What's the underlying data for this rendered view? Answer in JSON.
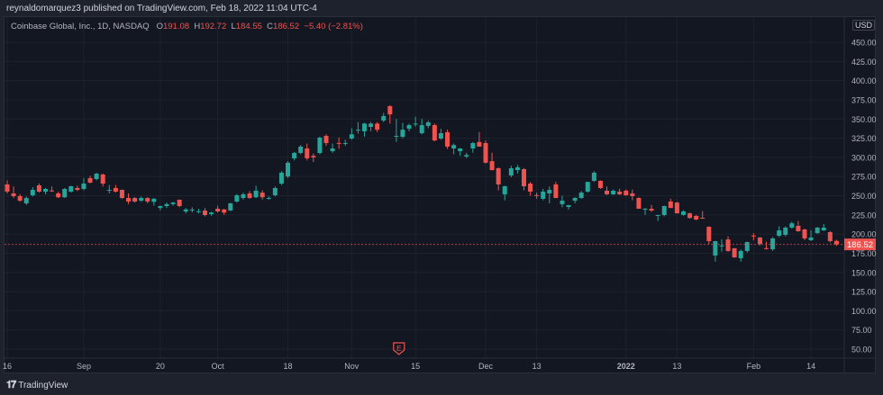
{
  "header": {
    "publish_line": "reynaldomarquez3 published on TradingView.com, Feb 18, 2022 11:04 UTC-4"
  },
  "legend": {
    "symbol": "Coinbase Global, Inc., 1D, NASDAQ",
    "o_label": "O",
    "o": "191.08",
    "h_label": "H",
    "h": "192.72",
    "l_label": "L",
    "l": "184.55",
    "c_label": "C",
    "c": "186.52",
    "change": "−5.40 (−2.81%)"
  },
  "currency": "USD",
  "footer": {
    "brand": "TradingView",
    "logo": "17"
  },
  "colors": {
    "up": "#26a69a",
    "down": "#ef5350",
    "background": "#131722",
    "grid": "#1e222d"
  },
  "earnings_marker": {
    "label": "E",
    "index": 60
  },
  "chart_data": {
    "type": "candlestick",
    "ylim": [
      37.5,
      462.5
    ],
    "y_ticks": [
      "450.00",
      "425.00",
      "400.00",
      "375.00",
      "350.00",
      "325.00",
      "300.00",
      "275.00",
      "250.00",
      "225.00",
      "200.00",
      "175.00",
      "150.00",
      "125.00",
      "100.00",
      "75.00",
      "50.00"
    ],
    "x_ticks": [
      {
        "label": "16",
        "index": 0
      },
      {
        "label": "Sep",
        "index": 12
      },
      {
        "label": "20",
        "index": 24
      },
      {
        "label": "Oct",
        "index": 33
      },
      {
        "label": "18",
        "index": 44
      },
      {
        "label": "Nov",
        "index": 54
      },
      {
        "label": "15",
        "index": 64
      },
      {
        "label": "Dec",
        "index": 75
      },
      {
        "label": "13",
        "index": 83
      },
      {
        "label": "2022",
        "index": 97
      },
      {
        "label": "13",
        "index": 105
      },
      {
        "label": "Feb",
        "index": 117
      },
      {
        "label": "14",
        "index": 126
      }
    ],
    "last_price": "186.52",
    "grid": true,
    "ohlc": [
      [
        264.7,
        270,
        253,
        255.3
      ],
      [
        253,
        262,
        247,
        249.4
      ],
      [
        249.4,
        252,
        242,
        243.5
      ],
      [
        240,
        249,
        238,
        247
      ],
      [
        250.6,
        261,
        249,
        257.6
      ],
      [
        263.5,
        266,
        254,
        255.3
      ],
      [
        255.3,
        260,
        252,
        258.8
      ],
      [
        256.8,
        262,
        255,
        256.5
      ],
      [
        253,
        255,
        247,
        248
      ],
      [
        248,
        260,
        247,
        258.8
      ],
      [
        255.3,
        263,
        254,
        262.3
      ],
      [
        260,
        263,
        256,
        257.6
      ],
      [
        258.8,
        273,
        257,
        265.8
      ],
      [
        272.9,
        276,
        266,
        267
      ],
      [
        271.7,
        280,
        270,
        278.7
      ],
      [
        277.6,
        279,
        262,
        265.8
      ],
      [
        256.5,
        264,
        253,
        257.6
      ],
      [
        260,
        264,
        254,
        255.3
      ],
      [
        257.6,
        258,
        246,
        247
      ],
      [
        247,
        253,
        239,
        242.4
      ],
      [
        247,
        248,
        241,
        242.4
      ],
      [
        243.5,
        249,
        242,
        247
      ],
      [
        247,
        248,
        240,
        242.4
      ],
      [
        242,
        247,
        237,
        246
      ],
      [
        234,
        237,
        231,
        236.5
      ],
      [
        236.5,
        241,
        234,
        239
      ],
      [
        239,
        242,
        237,
        241
      ],
      [
        244.7,
        245,
        235,
        236.5
      ],
      [
        229.5,
        234,
        227,
        232
      ],
      [
        231.5,
        235,
        228,
        232
      ],
      [
        229.5,
        233,
        227,
        229.8
      ],
      [
        230.6,
        234,
        223,
        224.8
      ],
      [
        226,
        229,
        224,
        228
      ],
      [
        233,
        237,
        228,
        229.5
      ],
      [
        232,
        233,
        225,
        228
      ],
      [
        230.6,
        241,
        230,
        240
      ],
      [
        242.4,
        252,
        241,
        250.6
      ],
      [
        247,
        254,
        245,
        251.8
      ],
      [
        253,
        256,
        246,
        247
      ],
      [
        248,
        263,
        247,
        256.5
      ],
      [
        254,
        257,
        245,
        248
      ],
      [
        246.6,
        249,
        245,
        247
      ],
      [
        250.6,
        262,
        249,
        260
      ],
      [
        265.8,
        282,
        264,
        280
      ],
      [
        275,
        295,
        273,
        293
      ],
      [
        298.7,
        307,
        296,
        305.7
      ],
      [
        305.7,
        316,
        304,
        314
      ],
      [
        311.6,
        318,
        296,
        298.7
      ],
      [
        302,
        305,
        294,
        300
      ],
      [
        305.7,
        327,
        304,
        325.7
      ],
      [
        328,
        330,
        315,
        318.6
      ],
      [
        308,
        318,
        306,
        311.6
      ],
      [
        318.8,
        326,
        311,
        318.6
      ],
      [
        318.4,
        323,
        315,
        318.6
      ],
      [
        324.5,
        338,
        323,
        330
      ],
      [
        335.8,
        346,
        331,
        336
      ],
      [
        334,
        345,
        327,
        344
      ],
      [
        339.7,
        346,
        334,
        344
      ],
      [
        344,
        346,
        333,
        336
      ],
      [
        348,
        358,
        346,
        353.8
      ],
      [
        366.7,
        368,
        344,
        356
      ],
      [
        327.6,
        350,
        320,
        328
      ],
      [
        326.8,
        345,
        325,
        336
      ],
      [
        337.4,
        344,
        334,
        342
      ],
      [
        343.8,
        353,
        340,
        344
      ],
      [
        331.5,
        350,
        330,
        342
      ],
      [
        341,
        348,
        338,
        345.6
      ],
      [
        342,
        344,
        321,
        322
      ],
      [
        324.5,
        337,
        323,
        331.5
      ],
      [
        332.7,
        336,
        311,
        314
      ],
      [
        311.6,
        318,
        304,
        316
      ],
      [
        308,
        312,
        302,
        311.6
      ],
      [
        301,
        306,
        299,
        303
      ],
      [
        311.6,
        320,
        306,
        318.6
      ],
      [
        320,
        333,
        314,
        314
      ],
      [
        318.6,
        322,
        292,
        293
      ],
      [
        295,
        306,
        283,
        283.4
      ],
      [
        285.8,
        287,
        257,
        264.7
      ],
      [
        251.8,
        263,
        244,
        262.3
      ],
      [
        276.4,
        289,
        274,
        285.8
      ],
      [
        283.4,
        290,
        279,
        287
      ],
      [
        284.6,
        286,
        257,
        262.3
      ],
      [
        265.8,
        268,
        250,
        255.3
      ],
      [
        250.8,
        254,
        246,
        250.6
      ],
      [
        246,
        259,
        244,
        255.3
      ],
      [
        253,
        262,
        240,
        257.6
      ],
      [
        264.7,
        268,
        247,
        247
      ],
      [
        239,
        250,
        235,
        243.5
      ],
      [
        235.3,
        238,
        232,
        237.7
      ],
      [
        243.5,
        248,
        240,
        247
      ],
      [
        247,
        256,
        246,
        254
      ],
      [
        255.3,
        268,
        254,
        268
      ],
      [
        269.4,
        282,
        268,
        280
      ],
      [
        269.4,
        270,
        259,
        260
      ],
      [
        256.5,
        262,
        251,
        251.8
      ],
      [
        251.8,
        258,
        251,
        256.5
      ],
      [
        255.3,
        259,
        251,
        251.8
      ],
      [
        256.5,
        258,
        250,
        250.6
      ],
      [
        253,
        258,
        244,
        249.4
      ],
      [
        247,
        248,
        233,
        233
      ],
      [
        232.8,
        234,
        225,
        233
      ],
      [
        233,
        238,
        229,
        230.6
      ],
      [
        224.6,
        225,
        217,
        224.8
      ],
      [
        224.8,
        237,
        223,
        236.5
      ],
      [
        242.4,
        246,
        234,
        234
      ],
      [
        241,
        242,
        227,
        227
      ],
      [
        225,
        231,
        224,
        229.5
      ],
      [
        227,
        228,
        220,
        221
      ],
      [
        223.6,
        225,
        218,
        219
      ],
      [
        221.2,
        230,
        220,
        221
      ],
      [
        209.5,
        210,
        187,
        190.8
      ],
      [
        172,
        191,
        164,
        190.8
      ],
      [
        184.8,
        193,
        177,
        185
      ],
      [
        193,
        197,
        177,
        177.9
      ],
      [
        181.4,
        182,
        169,
        169.6
      ],
      [
        168.5,
        180,
        164,
        177.9
      ],
      [
        177.9,
        190,
        176,
        189.6
      ],
      [
        198,
        201,
        192,
        197.8
      ],
      [
        195.5,
        196,
        185,
        187.2
      ],
      [
        181.6,
        190,
        180,
        181.4
      ],
      [
        180.2,
        196,
        178,
        194.3
      ],
      [
        197.8,
        210,
        196,
        204.8
      ],
      [
        199,
        210,
        197,
        208.4
      ],
      [
        208.4,
        216,
        207,
        214
      ],
      [
        210.7,
        217,
        203,
        203.7
      ],
      [
        206,
        207,
        192,
        194.3
      ],
      [
        192,
        205,
        191,
        195.5
      ],
      [
        201.3,
        209,
        200,
        208.4
      ],
      [
        204.8,
        213,
        204,
        208.4
      ],
      [
        202.5,
        204,
        189,
        190.8
      ],
      [
        191.08,
        192.72,
        184.55,
        186.52
      ]
    ]
  }
}
